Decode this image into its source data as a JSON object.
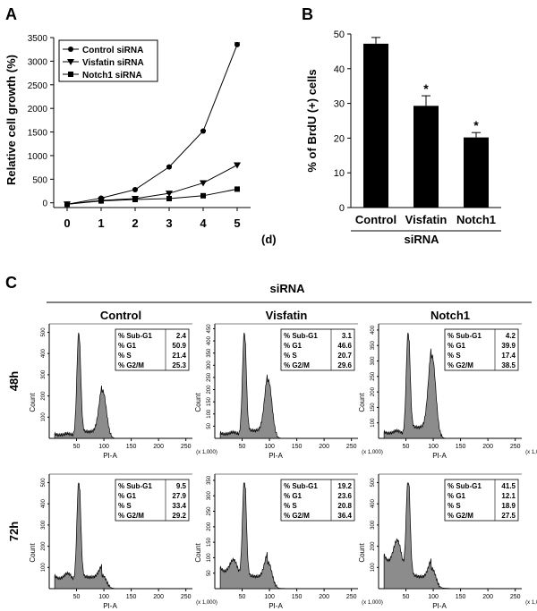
{
  "panels": {
    "a_label": "A",
    "b_label": "B",
    "c_label": "C"
  },
  "colors": {
    "ink": "#000000",
    "histogram_fill": "#8c8c8c"
  },
  "chart_data": [
    {
      "type": "line",
      "ylabel": "Relative cell growth (%)",
      "x_unit": "(d)",
      "x": [
        0,
        1,
        2,
        3,
        4,
        5
      ],
      "x_ticks": [
        "0",
        "1",
        "2",
        "3",
        "4",
        "5"
      ],
      "y_ticks": [
        "0",
        "500",
        "1000",
        "1500",
        "2000",
        "2500",
        "3000",
        "3500"
      ],
      "ylim": [
        -100,
        3500
      ],
      "legend_position": "top-left",
      "series": [
        {
          "name": "Control siRNA",
          "marker": "circle",
          "values": [
            -30,
            100,
            280,
            760,
            1520,
            3350
          ],
          "errors": [
            0,
            15,
            15,
            20,
            20,
            40
          ]
        },
        {
          "name": "Visfatin siRNA",
          "marker": "triangle-down",
          "values": [
            -30,
            50,
            90,
            200,
            420,
            800
          ],
          "errors": [
            0,
            10,
            10,
            15,
            25,
            30
          ]
        },
        {
          "name": "Notch1 siRNA",
          "marker": "square",
          "values": [
            -30,
            40,
            70,
            90,
            150,
            290
          ],
          "errors": [
            0,
            10,
            10,
            10,
            15,
            25
          ]
        }
      ]
    },
    {
      "type": "bar",
      "ylabel": "% of BrdU (+) cells",
      "xlabel": "siRNA",
      "categories": [
        "Control",
        "Visfatin",
        "Notch1"
      ],
      "values": [
        47.2,
        29.3,
        20.2
      ],
      "errors": [
        1.8,
        2.9,
        1.4
      ],
      "significance": [
        "",
        "*",
        "*"
      ],
      "y_ticks": [
        "0",
        "10",
        "20",
        "30",
        "40",
        "50"
      ],
      "ylim": [
        0,
        50
      ]
    },
    {
      "type": "area",
      "title": "siRNA",
      "columns": [
        "Control",
        "Visfatin",
        "Notch1"
      ],
      "rows": [
        "48h",
        "72h"
      ],
      "xlabel": "PI-A",
      "x_scale": "(x 1,000)",
      "x_ticks": [
        "50",
        "100",
        "150",
        "200",
        "250"
      ],
      "ylabel": "Count",
      "stat_labels": [
        "% Sub-G1",
        "% G1",
        "% S",
        "% G2/M"
      ],
      "panels": [
        {
          "row": "48h",
          "column": "Control",
          "stats": [
            "2.4",
            "50.9",
            "21.4",
            "25.3"
          ],
          "y_ticks": [
            "100",
            "200",
            "300",
            "400",
            "500"
          ],
          "profile": {
            "subg1": 0.03,
            "g1_height": 1.0,
            "s": 0.12,
            "g2_height": 0.45,
            "debris": 0.04
          }
        },
        {
          "row": "48h",
          "column": "Visfatin",
          "stats": [
            "3.1",
            "46.6",
            "20.7",
            "29.6"
          ],
          "y_ticks": [
            "50",
            "100",
            "150",
            "200",
            "250",
            "300",
            "350",
            "400",
            "450"
          ],
          "profile": {
            "subg1": 0.04,
            "g1_height": 1.0,
            "s": 0.14,
            "g2_height": 0.55,
            "debris": 0.05
          }
        },
        {
          "row": "48h",
          "column": "Notch1",
          "stats": [
            "4.2",
            "39.9",
            "17.4",
            "38.5"
          ],
          "y_ticks": [
            "100",
            "150",
            "200",
            "250",
            "300",
            "350",
            "400"
          ],
          "profile": {
            "subg1": 0.05,
            "g1_height": 1.0,
            "s": 0.2,
            "g2_height": 0.78,
            "debris": 0.06
          }
        },
        {
          "row": "72h",
          "column": "Control",
          "stats": [
            "9.5",
            "27.9",
            "33.4",
            "29.2"
          ],
          "y_ticks": [
            "100",
            "200",
            "300",
            "400",
            "500"
          ],
          "profile": {
            "subg1": 0.1,
            "g1_height": 1.0,
            "s": 0.2,
            "g2_height": 0.12,
            "debris": 0.12
          }
        },
        {
          "row": "72h",
          "column": "Visfatin",
          "stats": [
            "19.2",
            "23.6",
            "20.8",
            "36.4"
          ],
          "y_ticks": [
            "50",
            "100",
            "150",
            "200",
            "250",
            "300",
            "350"
          ],
          "profile": {
            "subg1": 0.2,
            "g1_height": 1.0,
            "s": 0.2,
            "g2_height": 0.24,
            "debris": 0.2
          }
        },
        {
          "row": "72h",
          "column": "Notch1",
          "stats": [
            "41.5",
            "12.1",
            "18.9",
            "27.5"
          ],
          "y_ticks": [
            "100",
            "200",
            "300",
            "400",
            "500"
          ],
          "profile": {
            "subg1": 0.34,
            "g1_height": 1.0,
            "s": 0.18,
            "g2_height": 0.18,
            "debris": 0.32
          }
        }
      ]
    }
  ]
}
